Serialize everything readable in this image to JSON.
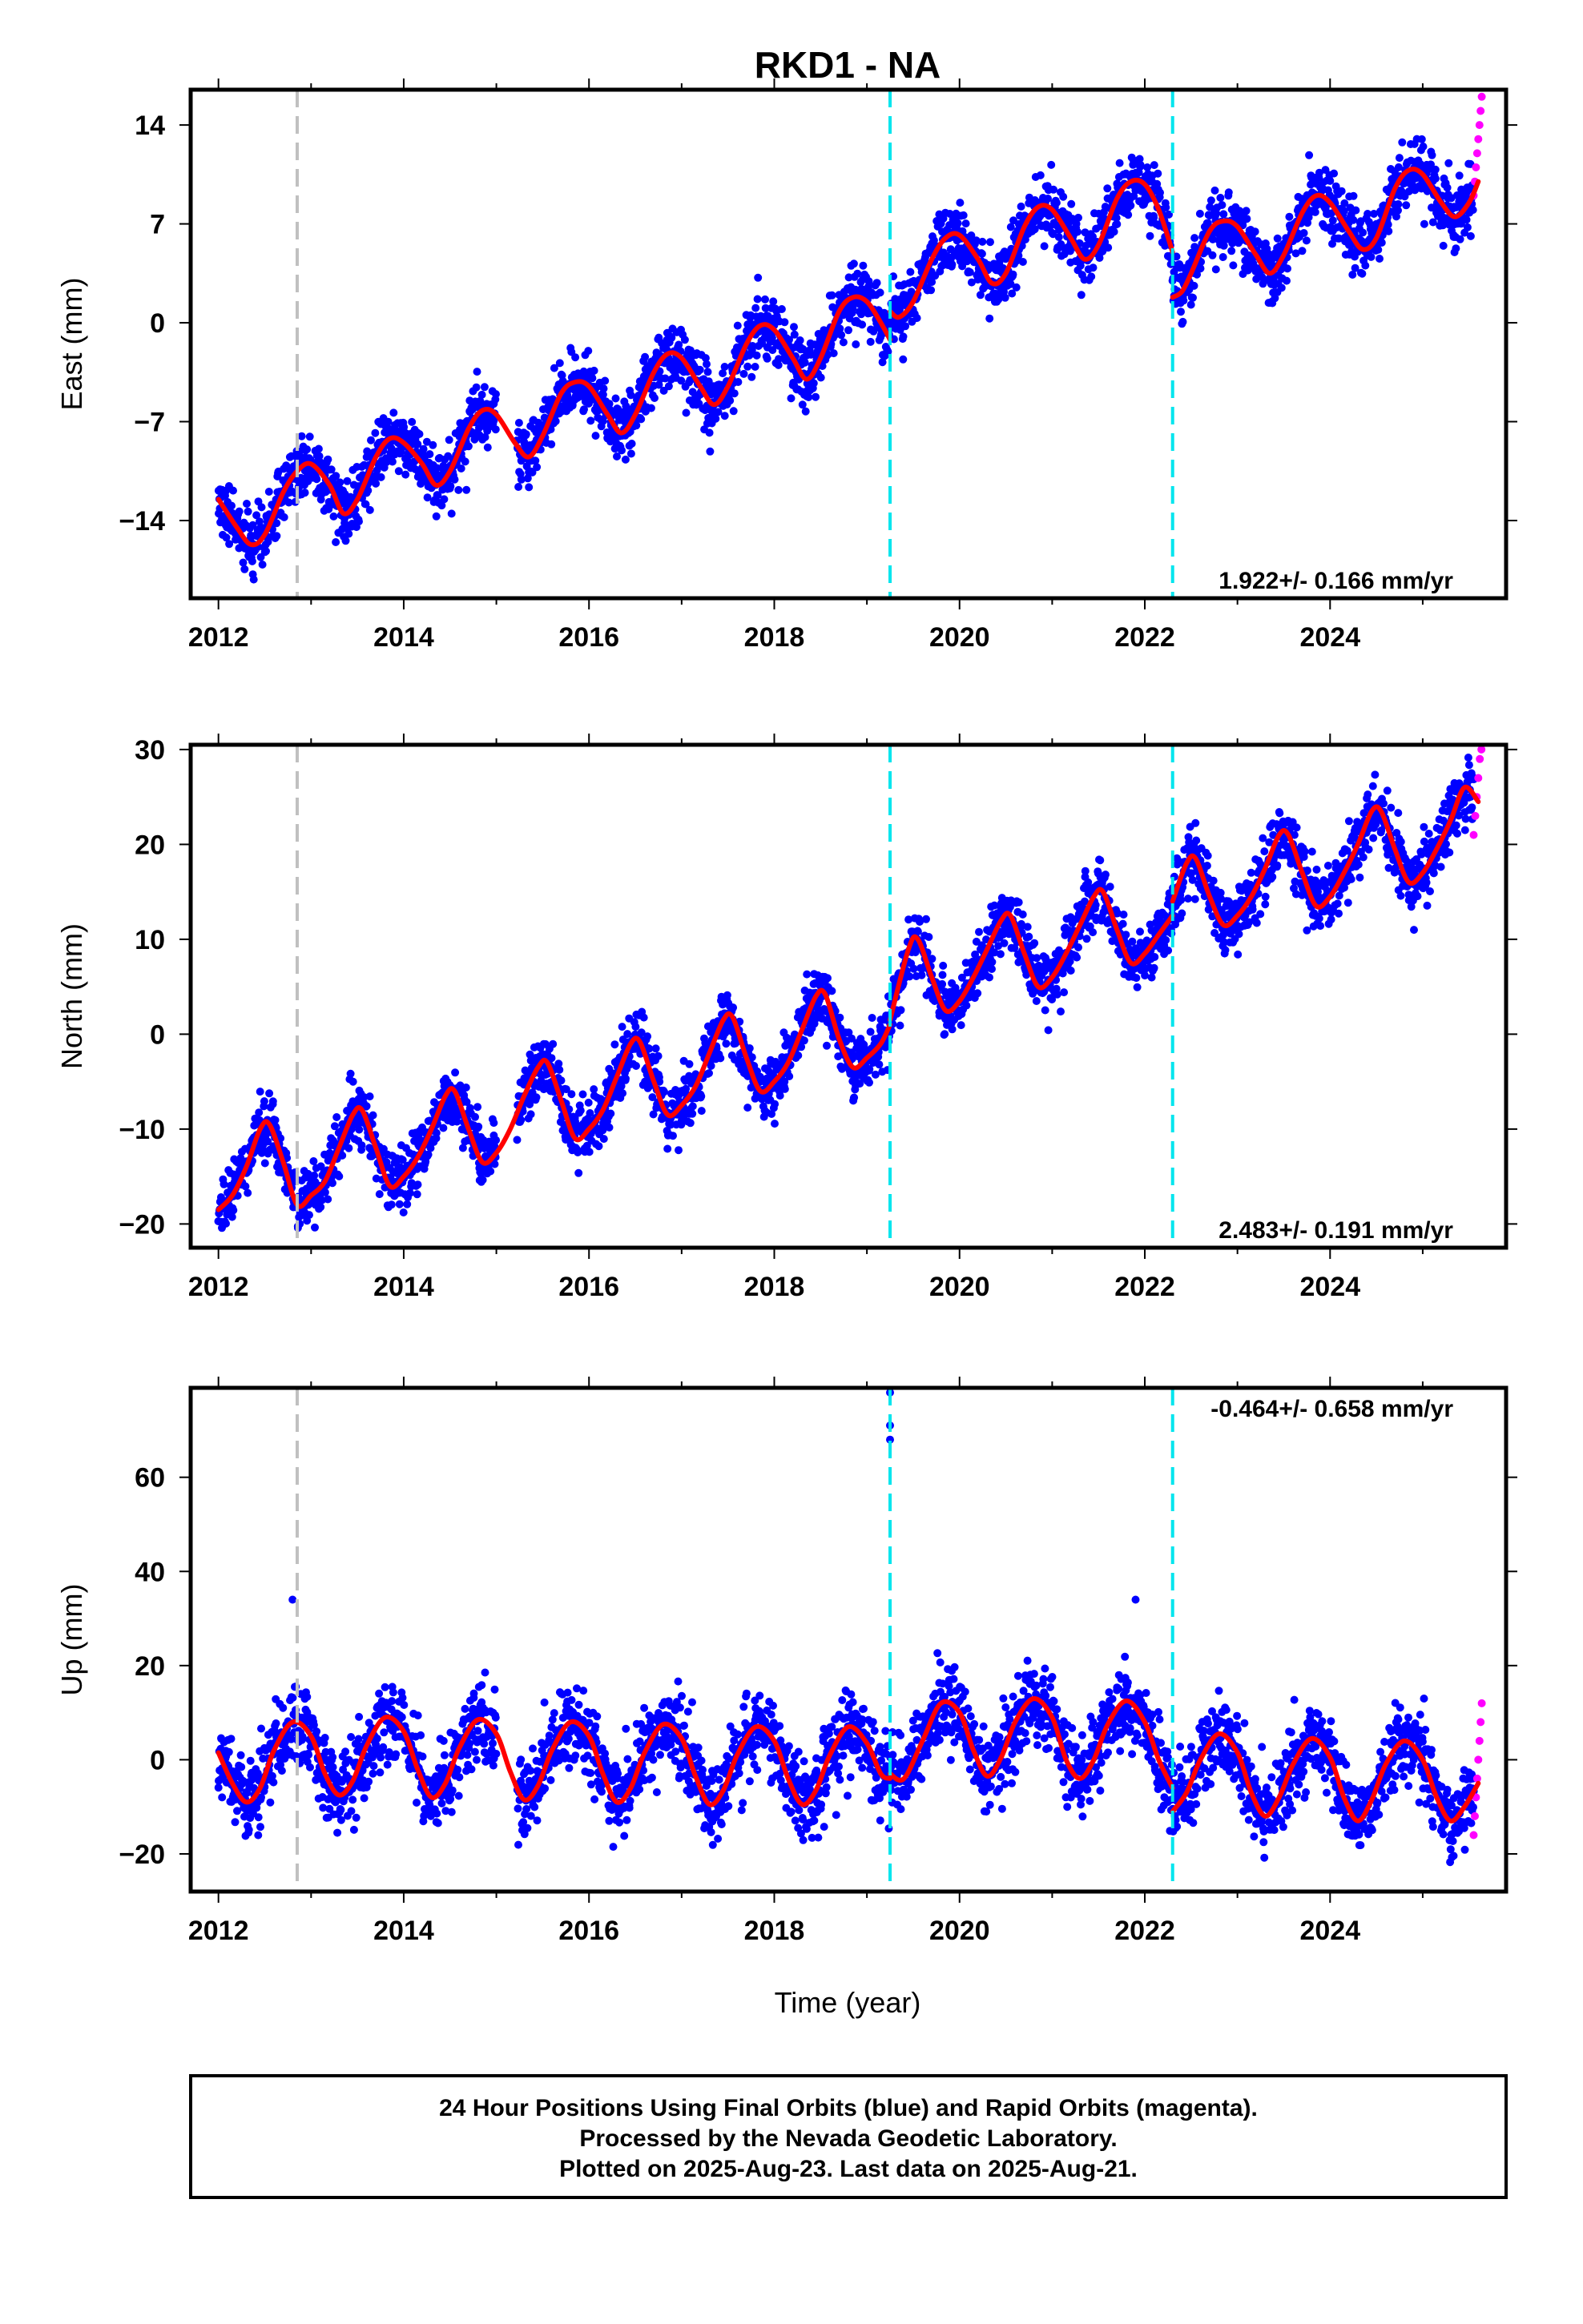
{
  "colors": {
    "final_orbits": "#0000ff",
    "rapid_orbits": "#ff00ff",
    "model": "#ff0000",
    "equipment_change": "#00e5ee",
    "event_line": "#c0c0c0",
    "frame": "#000000"
  },
  "chart_data": {
    "title": "RKD1 - NA",
    "xlabel": "Time (year)",
    "x_ticks": [
      "2012",
      "2014",
      "2016",
      "2018",
      "2020",
      "2022",
      "2024"
    ],
    "xlim": [
      2011.7,
      2025.9
    ],
    "vertical_lines": [
      {
        "x": 2012.85,
        "style": "gray-dashed"
      },
      {
        "x": 2019.25,
        "style": "cyan-dashed"
      },
      {
        "x": 2022.3,
        "style": "cyan-dashed"
      }
    ],
    "panels": [
      {
        "type": "scatter",
        "ylabel": "East (mm)",
        "ylim": [
          -19.5,
          16.5
        ],
        "y_ticks": [
          "14",
          "7",
          "0",
          "−7",
          "−14"
        ],
        "y_tick_values": [
          14,
          7,
          0,
          -7,
          -14
        ],
        "rate": "1.922+/- 0.166 mm/yr",
        "rate_position": "bottom-right",
        "final_end": 2025.55,
        "rapid_range": [
          2025.55,
          2025.65
        ],
        "rapid_values": [
          9,
          10,
          11,
          12,
          13,
          14,
          15,
          16
        ],
        "model_segments": [
          {
            "x": [
              2012.0,
              2012.2,
              2012.35,
              2012.5,
              2012.7,
              2012.85,
              2013.0,
              2013.2,
              2013.35,
              2013.5,
              2013.7,
              2013.85,
              2014.0,
              2014.2,
              2014.35,
              2014.5,
              2014.7,
              2014.85,
              2015.0,
              2015.2,
              2015.35,
              2015.5,
              2015.7,
              2015.85,
              2016.0,
              2016.2,
              2016.35,
              2016.5,
              2016.7,
              2016.85,
              2017.0,
              2017.2,
              2017.35,
              2017.5,
              2017.7,
              2017.85,
              2018.0,
              2018.2,
              2018.35,
              2018.5,
              2018.7,
              2018.85,
              2019.0,
              2019.15,
              2019.25
            ],
            "y": [
              -12.5,
              -14.5,
              -15.7,
              -15.0,
              -12.0,
              -10.5,
              -10.0,
              -11.5,
              -13.5,
              -12.5,
              -9.5,
              -8.2,
              -8.5,
              -10.0,
              -11.5,
              -10.5,
              -7.5,
              -6.2,
              -6.5,
              -8.5,
              -9.5,
              -8.0,
              -5.0,
              -4.2,
              -4.5,
              -6.5,
              -7.8,
              -6.5,
              -3.5,
              -2.2,
              -2.5,
              -4.5,
              -5.8,
              -4.5,
              -1.5,
              -0.2,
              -0.5,
              -2.5,
              -4.0,
              -2.5,
              0.8,
              1.8,
              1.5,
              0.0,
              -1.2
            ]
          },
          {
            "x": [
              2019.25,
              2019.35,
              2019.5,
              2019.7,
              2019.85,
              2020.0,
              2020.2,
              2020.35,
              2020.5,
              2020.7,
              2020.85,
              2021.0,
              2021.2,
              2021.35,
              2021.5,
              2021.7,
              2021.85,
              2022.0,
              2022.15,
              2022.3
            ],
            "y": [
              0.8,
              0.4,
              1.5,
              4.5,
              6.0,
              6.2,
              4.5,
              2.8,
              3.5,
              6.8,
              8.2,
              8.0,
              6.0,
              4.5,
              5.5,
              8.8,
              10.0,
              9.8,
              8.0,
              5.0
            ]
          },
          {
            "x": [
              2022.3,
              2022.4,
              2022.5,
              2022.7,
              2022.85,
              2023.0,
              2023.2,
              2023.35,
              2023.5,
              2023.7,
              2023.85,
              2024.0,
              2024.2,
              2024.35,
              2024.5,
              2024.7,
              2024.85,
              2025.0,
              2025.2,
              2025.35,
              2025.5,
              2025.6
            ],
            "y": [
              1.8,
              2.2,
              3.5,
              6.5,
              7.2,
              6.8,
              4.8,
              3.5,
              4.8,
              7.8,
              9.0,
              8.5,
              6.5,
              5.2,
              6.0,
              9.5,
              10.8,
              10.5,
              8.5,
              7.5,
              8.5,
              10.0
            ]
          }
        ]
      },
      {
        "type": "scatter",
        "ylabel": "North (mm)",
        "ylim": [
          -22.5,
          30.5
        ],
        "y_ticks": [
          "30",
          "20",
          "10",
          "0",
          "−10",
          "−20"
        ],
        "y_tick_values": [
          30,
          20,
          10,
          0,
          -10,
          -20
        ],
        "rate": "2.483+/- 0.191 mm/yr",
        "rate_position": "bottom-right",
        "final_end": 2025.55,
        "rapid_range": [
          2025.55,
          2025.65
        ],
        "rapid_values": [
          21,
          23,
          25,
          27,
          29,
          30
        ],
        "model_segments": [
          {
            "x": [
              2012.0,
              2012.15,
              2012.3,
              2012.45,
              2012.55,
              2012.7,
              2012.85,
              2013.0,
              2013.15,
              2013.3,
              2013.45,
              2013.55,
              2013.7,
              2013.85,
              2014.0,
              2014.15,
              2014.3,
              2014.45,
              2014.55,
              2014.7,
              2014.85,
              2015.0,
              2015.15,
              2015.3,
              2015.45,
              2015.55,
              2015.7,
              2015.85,
              2016.0,
              2016.15,
              2016.3,
              2016.45,
              2016.55,
              2016.7,
              2016.85,
              2017.0,
              2017.15,
              2017.3,
              2017.45,
              2017.55,
              2017.7,
              2017.85,
              2018.0,
              2018.15,
              2018.3,
              2018.45,
              2018.55,
              2018.7,
              2018.85,
              2019.0,
              2019.15,
              2019.25
            ],
            "y": [
              -18.5,
              -17.0,
              -14.0,
              -10.0,
              -9.5,
              -13.5,
              -18.0,
              -17.0,
              -15.5,
              -12.0,
              -8.5,
              -8.0,
              -12.0,
              -16.0,
              -15.0,
              -13.0,
              -10.0,
              -6.5,
              -6.0,
              -10.0,
              -13.5,
              -12.5,
              -10.0,
              -6.5,
              -3.5,
              -3.0,
              -7.0,
              -11.0,
              -10.0,
              -8.0,
              -4.5,
              -1.0,
              -0.8,
              -5.0,
              -8.5,
              -7.5,
              -5.5,
              -2.0,
              1.5,
              1.8,
              -2.5,
              -6.0,
              -5.0,
              -3.0,
              0.5,
              4.0,
              4.2,
              -0.5,
              -3.5,
              -2.5,
              -1.0,
              1.0
            ]
          },
          {
            "x": [
              2019.25,
              2019.45,
              2019.55,
              2019.7,
              2019.85,
              2020.0,
              2020.15,
              2020.3,
              2020.45,
              2020.55,
              2020.7,
              2020.85,
              2021.0,
              2021.15,
              2021.3,
              2021.45,
              2021.55,
              2021.7,
              2021.85,
              2022.0,
              2022.15,
              2022.3
            ],
            "y": [
              1.5,
              9.0,
              10.0,
              6.0,
              2.5,
              3.5,
              6.0,
              9.0,
              12.0,
              12.5,
              8.5,
              5.0,
              6.0,
              8.5,
              11.5,
              14.5,
              15.0,
              11.0,
              7.5,
              8.5,
              10.5,
              12.5
            ]
          },
          {
            "x": [
              2022.3,
              2022.45,
              2022.55,
              2022.7,
              2022.85,
              2023.0,
              2023.15,
              2023.3,
              2023.45,
              2023.55,
              2023.7,
              2023.85,
              2024.0,
              2024.15,
              2024.3,
              2024.45,
              2024.55,
              2024.7,
              2024.85,
              2025.0,
              2025.15,
              2025.3,
              2025.45,
              2025.6
            ],
            "y": [
              14.0,
              18.0,
              18.5,
              14.5,
              11.5,
              12.5,
              14.5,
              17.5,
              21.0,
              21.0,
              17.0,
              13.5,
              14.5,
              17.0,
              20.0,
              23.5,
              23.5,
              19.5,
              16.0,
              17.0,
              19.5,
              22.5,
              26.0,
              24.5
            ]
          }
        ]
      },
      {
        "type": "scatter",
        "ylabel": "Up (mm)",
        "ylim": [
          -28,
          79
        ],
        "y_ticks": [
          "60",
          "40",
          "20",
          "0",
          "−20"
        ],
        "y_tick_values": [
          60,
          40,
          20,
          0,
          -20
        ],
        "rate": "-0.464+/- 0.658 mm/yr",
        "rate_position": "top-right",
        "final_end": 2025.55,
        "rapid_range": [
          2025.55,
          2025.65
        ],
        "rapid_values": [
          -16,
          -12,
          -8,
          -4,
          0,
          4,
          8,
          12
        ],
        "outliers": [
          {
            "x": 2012.8,
            "y": 34
          },
          {
            "x": 2019.25,
            "y": 68
          },
          {
            "x": 2019.25,
            "y": 71
          },
          {
            "x": 2019.25,
            "y": 78
          },
          {
            "x": 2021.9,
            "y": 34
          }
        ],
        "model_segments": [
          {
            "x": [
              2012.0,
              2012.15,
              2012.3,
              2012.45,
              2012.6,
              2012.8,
              2013.0,
              2013.15,
              2013.3,
              2013.45,
              2013.6,
              2013.8,
              2014.0,
              2014.15,
              2014.3,
              2014.45,
              2014.6,
              2014.8,
              2015.0,
              2015.15,
              2015.3,
              2015.45,
              2015.6,
              2015.8,
              2016.0,
              2016.15,
              2016.3,
              2016.45,
              2016.6,
              2016.8,
              2017.0,
              2017.15,
              2017.3,
              2017.45,
              2017.6,
              2017.8,
              2018.0,
              2018.15,
              2018.3,
              2018.45,
              2018.6,
              2018.8,
              2019.0,
              2019.15,
              2019.25
            ],
            "y": [
              1.5,
              -5.0,
              -9.0,
              -6.0,
              2.0,
              8.0,
              5.0,
              -3.0,
              -7.5,
              -4.5,
              3.0,
              9.0,
              6.0,
              -2.0,
              -8.0,
              -5.0,
              2.5,
              8.5,
              5.5,
              -2.5,
              -8.5,
              -5.5,
              2.0,
              8.0,
              5.0,
              -3.0,
              -9.0,
              -6.0,
              1.5,
              7.5,
              4.5,
              -3.5,
              -9.5,
              -6.5,
              1.0,
              7.0,
              4.0,
              -4.0,
              -9.5,
              -6.5,
              1.0,
              7.0,
              3.5,
              -3.0,
              -4.0
            ]
          },
          {
            "x": [
              2019.25,
              2019.4,
              2019.6,
              2019.8,
              2020.0,
              2020.15,
              2020.3,
              2020.45,
              2020.6,
              2020.8,
              2021.0,
              2021.15,
              2021.3,
              2021.45,
              2021.6,
              2021.8,
              2022.0,
              2022.15,
              2022.3
            ],
            "y": [
              -3.0,
              -4.0,
              4.0,
              12.0,
              10.0,
              2.0,
              -3.5,
              0.5,
              8.0,
              13.0,
              9.0,
              0.0,
              -4.0,
              0.0,
              7.5,
              12.5,
              8.0,
              0.0,
              -6.0
            ]
          },
          {
            "x": [
              2022.3,
              2022.45,
              2022.6,
              2022.8,
              2023.0,
              2023.15,
              2023.3,
              2023.45,
              2023.6,
              2023.8,
              2024.0,
              2024.15,
              2024.3,
              2024.45,
              2024.6,
              2024.8,
              2025.0,
              2025.15,
              2025.3,
              2025.45,
              2025.6
            ],
            "y": [
              -11.0,
              -7.0,
              0.0,
              5.5,
              1.5,
              -7.0,
              -12.0,
              -8.0,
              -1.0,
              4.5,
              0.5,
              -8.0,
              -13.0,
              -8.5,
              -1.0,
              4.0,
              0.0,
              -8.0,
              -13.0,
              -10.0,
              -5.0
            ]
          }
        ]
      }
    ]
  },
  "info_box": {
    "line1": "24 Hour Positions Using Final Orbits (blue) and Rapid Orbits (magenta).",
    "line2": "Processed by the Nevada Geodetic Laboratory.",
    "line3": "Plotted on 2025-Aug-23. Last data on 2025-Aug-21."
  }
}
